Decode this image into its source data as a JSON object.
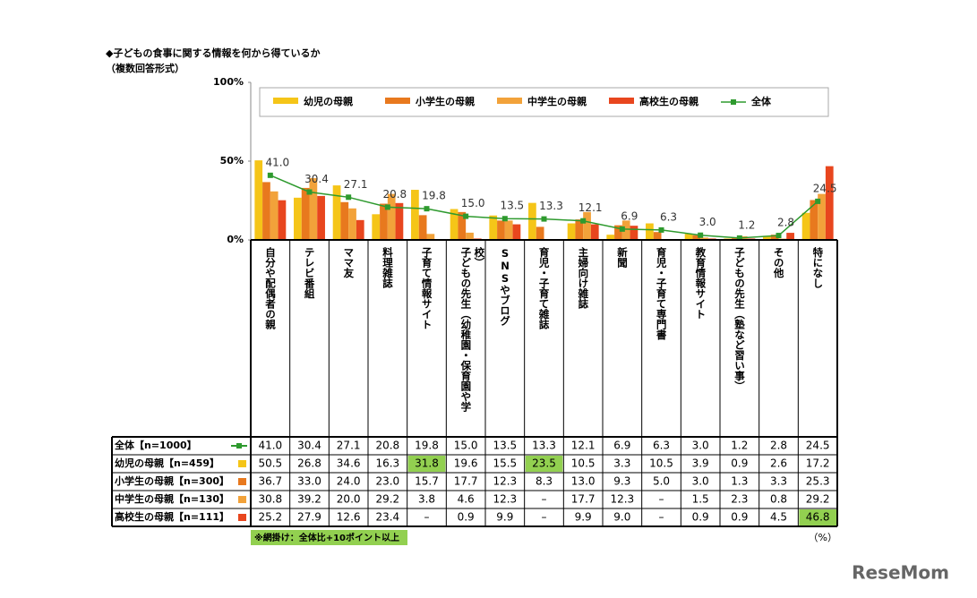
{
  "chart_data": {
    "type": "bar",
    "title": "◆子どもの食事に関する情報を何から得ているか",
    "subtitle": "（複数回答形式）",
    "categories": [
      "自分や配偶者の親",
      "テレビ番組",
      "ママ友",
      "料理雑誌",
      "子育て情報サイト",
      "子どもの先生（幼稚園・保育園や学校）",
      "SNSやブログ",
      "育児・子育て雑誌",
      "主婦向け雑誌",
      "新聞",
      "育児・子育て専門書",
      "教育情報サイト",
      "子どもの先生（塾など習い事）",
      "その他",
      "特になし"
    ],
    "series": [
      {
        "name": "全体",
        "row_label": "全体【n=1000】",
        "type": "line",
        "color": "#2e9a2e",
        "values": [
          41.0,
          30.4,
          27.1,
          20.8,
          19.8,
          15.0,
          13.5,
          13.3,
          12.1,
          6.9,
          6.3,
          3.0,
          1.2,
          2.8,
          24.5
        ],
        "value_labels": [
          "41.0",
          "30.4",
          "27.1",
          "20.8",
          "19.8",
          "15.0",
          "13.5",
          "13.3",
          "12.1",
          "6.9",
          "6.3",
          "3.0",
          "1.2",
          "2.8",
          "24.5"
        ]
      },
      {
        "name": "幼児の母親",
        "row_label": "幼児の母親【n=459】",
        "color": "#f5c518",
        "values": [
          50.5,
          26.8,
          34.6,
          16.3,
          31.8,
          19.6,
          15.5,
          23.5,
          10.5,
          3.3,
          10.5,
          3.9,
          0.9,
          2.6,
          17.2
        ],
        "value_labels": [
          "50.5",
          "26.8",
          "34.6",
          "16.3",
          "31.8",
          "19.6",
          "15.5",
          "23.5",
          "10.5",
          "3.3",
          "10.5",
          "3.9",
          "0.9",
          "2.6",
          "17.2"
        ]
      },
      {
        "name": "小学生の母親",
        "row_label": "小学生の母親【n=300】",
        "color": "#e8791e",
        "values": [
          36.7,
          33.0,
          24.0,
          23.0,
          15.7,
          17.7,
          12.3,
          8.3,
          13.0,
          9.3,
          5.0,
          3.0,
          1.3,
          3.3,
          25.3
        ],
        "value_labels": [
          "36.7",
          "33.0",
          "24.0",
          "23.0",
          "15.7",
          "17.7",
          "12.3",
          "8.3",
          "13.0",
          "9.3",
          "5.0",
          "3.0",
          "1.3",
          "3.3",
          "25.3"
        ]
      },
      {
        "name": "中学生の母親",
        "row_label": "中学生の母親【n=130】",
        "color": "#f2a23a",
        "values": [
          30.8,
          39.2,
          20.0,
          29.2,
          3.8,
          4.6,
          12.3,
          null,
          17.7,
          12.3,
          null,
          1.5,
          2.3,
          0.8,
          29.2
        ],
        "value_labels": [
          "30.8",
          "39.2",
          "20.0",
          "29.2",
          "3.8",
          "4.6",
          "12.3",
          "–",
          "17.7",
          "12.3",
          "–",
          "1.5",
          "2.3",
          "0.8",
          "29.2"
        ]
      },
      {
        "name": "高校生の母親",
        "row_label": "高校生の母親【n=111】",
        "color": "#e8461e",
        "values": [
          25.2,
          27.9,
          12.6,
          23.4,
          null,
          0.9,
          9.9,
          null,
          9.9,
          9.0,
          null,
          0.9,
          0.9,
          4.5,
          46.8
        ],
        "value_labels": [
          "25.2",
          "27.9",
          "12.6",
          "23.4",
          "–",
          "0.9",
          "9.9",
          "–",
          "9.9",
          "9.0",
          "–",
          "0.9",
          "0.9",
          "4.5",
          "46.8"
        ]
      }
    ],
    "ylim": [
      0,
      100
    ],
    "yticks": [
      {
        "value": 0,
        "label": "0%"
      },
      {
        "value": 50,
        "label": "50%"
      },
      {
        "value": 100,
        "label": "100%"
      }
    ],
    "highlight_note": "※網掛け：全体比+10ポイント以上",
    "highlight_threshold": 10,
    "highlight_color": "#92d050",
    "unit_note": "（%）",
    "source": "ReseMom"
  }
}
